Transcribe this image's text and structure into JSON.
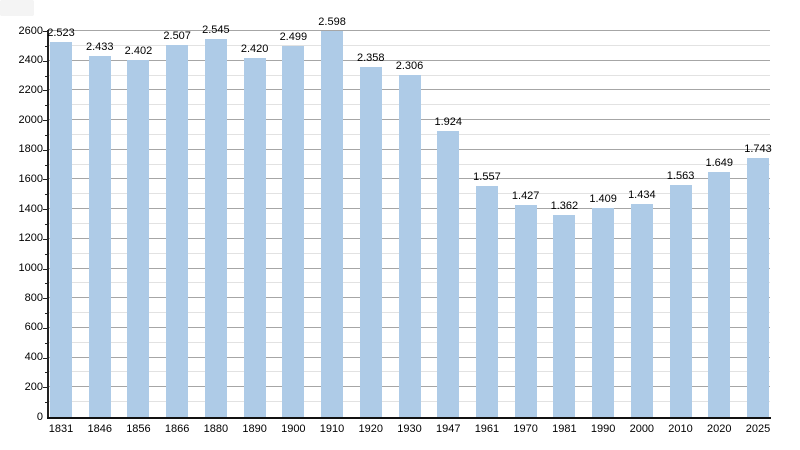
{
  "chart_data": {
    "type": "bar",
    "title": "",
    "xlabel": "",
    "ylabel": "",
    "categories": [
      "1831",
      "1846",
      "1856",
      "1866",
      "1880",
      "1890",
      "1900",
      "1910",
      "1920",
      "1930",
      "1947",
      "1961",
      "1970",
      "1981",
      "1990",
      "2000",
      "2010",
      "2020",
      "2025"
    ],
    "values": [
      2523,
      2433,
      2402,
      2507,
      2545,
      2420,
      2499,
      2598,
      2358,
      2306,
      1924,
      1557,
      1427,
      1362,
      1409,
      1434,
      1563,
      1649,
      1743
    ],
    "value_labels": [
      "2.523",
      "2.433",
      "2.402",
      "2.507",
      "2.545",
      "2.420",
      "2.499",
      "2.598",
      "2.358",
      "2.306",
      "1.924",
      "1.557",
      "1.427",
      "1.362",
      "1.409",
      "1.434",
      "1.563",
      "1.649",
      "1.743"
    ],
    "ylim": [
      0,
      2600
    ],
    "y_major_step": 200,
    "y_minor_step": 100,
    "y_tick_labels": [
      "0",
      "200",
      "400",
      "600",
      "800",
      "1000",
      "1200",
      "1400",
      "1600",
      "1800",
      "2000",
      "2200",
      "2400",
      "2600"
    ],
    "grid": true,
    "legend": "none",
    "colors": {
      "bar": "#aecbe7",
      "gridline_major": "#a6a6a6",
      "gridline_minor": "#e2e2e2",
      "axis": "#1a1a1a",
      "label_text": "#000000",
      "background": "#ffffff"
    }
  }
}
